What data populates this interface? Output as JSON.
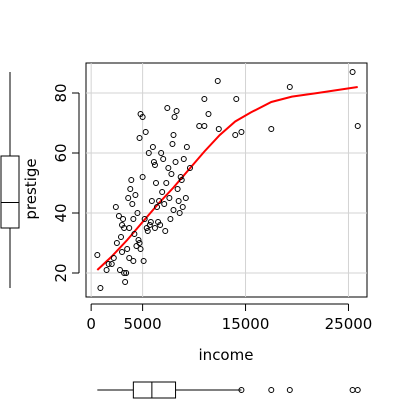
{
  "chart_data": {
    "type": "scatter",
    "title": "",
    "xlabel": "income",
    "ylabel": "prestige",
    "xlim": [
      -500,
      26800
    ],
    "ylim": [
      12,
      90
    ],
    "x_ticks": [
      0,
      5000,
      15000,
      25000
    ],
    "x_tick_labels": [
      "0",
      "5000",
      "15000",
      "25000"
    ],
    "y_ticks": [
      20,
      40,
      60,
      80
    ],
    "y_tick_labels": [
      "20",
      "40",
      "60",
      "80"
    ],
    "grid": true,
    "colors": {
      "points": "#000000",
      "smoother": "#ff0000",
      "grid": "#d3d3d3",
      "axes": "#000000"
    },
    "points": [
      [
        600,
        26
      ],
      [
        900,
        15
      ],
      [
        1500,
        21
      ],
      [
        1700,
        23
      ],
      [
        2000,
        23
      ],
      [
        2200,
        25
      ],
      [
        2400,
        42
      ],
      [
        2500,
        30
      ],
      [
        2700,
        39
      ],
      [
        2800,
        21
      ],
      [
        2900,
        32
      ],
      [
        3000,
        36
      ],
      [
        3000,
        27
      ],
      [
        3100,
        38
      ],
      [
        3200,
        20
      ],
      [
        3200,
        35
      ],
      [
        3300,
        17
      ],
      [
        3400,
        20
      ],
      [
        3500,
        28
      ],
      [
        3600,
        45
      ],
      [
        3700,
        35
      ],
      [
        3700,
        25
      ],
      [
        3800,
        48
      ],
      [
        3900,
        51
      ],
      [
        4000,
        43
      ],
      [
        4100,
        24
      ],
      [
        4100,
        38
      ],
      [
        4200,
        33
      ],
      [
        4300,
        46
      ],
      [
        4400,
        29
      ],
      [
        4500,
        40
      ],
      [
        4600,
        31
      ],
      [
        4700,
        65
      ],
      [
        4700,
        30
      ],
      [
        4800,
        73
      ],
      [
        4800,
        28
      ],
      [
        5000,
        52
      ],
      [
        5000,
        72
      ],
      [
        5100,
        24
      ],
      [
        5200,
        38
      ],
      [
        5300,
        67
      ],
      [
        5400,
        35
      ],
      [
        5500,
        34
      ],
      [
        5600,
        60
      ],
      [
        5700,
        36
      ],
      [
        5800,
        37
      ],
      [
        5900,
        44
      ],
      [
        6000,
        62
      ],
      [
        6100,
        57
      ],
      [
        6200,
        56
      ],
      [
        6200,
        35
      ],
      [
        6300,
        50
      ],
      [
        6400,
        42
      ],
      [
        6500,
        37
      ],
      [
        6600,
        44
      ],
      [
        6700,
        36
      ],
      [
        6800,
        60
      ],
      [
        6900,
        47
      ],
      [
        7000,
        58
      ],
      [
        7100,
        43
      ],
      [
        7200,
        34
      ],
      [
        7300,
        50
      ],
      [
        7400,
        75
      ],
      [
        7500,
        55
      ],
      [
        7600,
        45
      ],
      [
        7700,
        38
      ],
      [
        7800,
        53
      ],
      [
        7900,
        63
      ],
      [
        8000,
        41
      ],
      [
        8000,
        66
      ],
      [
        8100,
        72
      ],
      [
        8200,
        57
      ],
      [
        8300,
        74
      ],
      [
        8400,
        48
      ],
      [
        8500,
        44
      ],
      [
        8600,
        40
      ],
      [
        8700,
        52
      ],
      [
        8800,
        51
      ],
      [
        8900,
        42
      ],
      [
        9000,
        58
      ],
      [
        9200,
        45
      ],
      [
        9300,
        62
      ],
      [
        9600,
        55
      ],
      [
        10500,
        69
      ],
      [
        11000,
        78
      ],
      [
        11000,
        69
      ],
      [
        11400,
        73
      ],
      [
        12300,
        84
      ],
      [
        12400,
        68
      ],
      [
        14000,
        66
      ],
      [
        14100,
        78
      ],
      [
        14600,
        67
      ],
      [
        17500,
        68
      ],
      [
        19300,
        82
      ],
      [
        25400,
        87
      ],
      [
        25900,
        69
      ]
    ],
    "smoother": [
      [
        600,
        21
      ],
      [
        2000,
        25.5
      ],
      [
        3500,
        31
      ],
      [
        5000,
        37
      ],
      [
        6500,
        43
      ],
      [
        8000,
        48.5
      ],
      [
        9500,
        54.5
      ],
      [
        11000,
        60.5
      ],
      [
        12500,
        66
      ],
      [
        14000,
        70.5
      ],
      [
        15500,
        73.5
      ],
      [
        17500,
        77
      ],
      [
        19500,
        78.8
      ],
      [
        22000,
        80
      ],
      [
        25900,
        82
      ]
    ],
    "boxplot_income": {
      "min": 600,
      "q1": 4100,
      "median": 5900,
      "q3": 8200,
      "upper_whisker": 14600,
      "outliers": [
        17500,
        19300,
        25400,
        25900
      ]
    },
    "boxplot_prestige": {
      "min": 15,
      "q1": 35,
      "median": 43.5,
      "q3": 59,
      "max": 87
    }
  }
}
